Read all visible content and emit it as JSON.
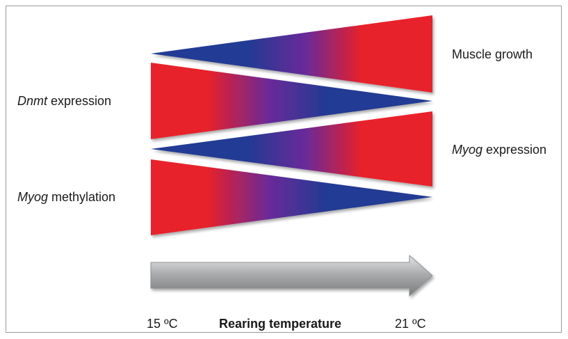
{
  "rows": [
    {
      "italic": "",
      "text": "Muscle growth"
    },
    {
      "italic": "Dnmt",
      "text": " expression"
    },
    {
      "italic": "Myog",
      "text": " expression"
    },
    {
      "italic": "Myog",
      "text": " methylation"
    }
  ],
  "axis": {
    "title": "Rearing temperature",
    "start": "15 ºC",
    "end": "21 ºC"
  },
  "colors": {
    "low": "#233a94",
    "mid": "#6a2a98",
    "high": "#e8202a",
    "arrow": "#a8aaac",
    "frame": "#9a9a9a"
  }
}
